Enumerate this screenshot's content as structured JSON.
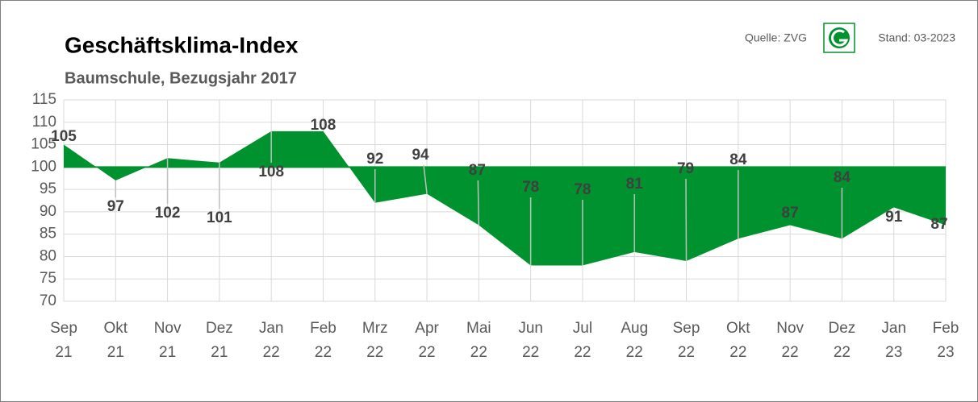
{
  "chart_data": {
    "type": "area",
    "title": "Geschäftsklima-Index",
    "subtitle": "Baumschule, Bezugsjahr 2017",
    "source": "Quelle: ZVG",
    "date": "Stand: 03-2023",
    "categories": [
      [
        "Sep",
        "21"
      ],
      [
        "Okt",
        "21"
      ],
      [
        "Nov",
        "21"
      ],
      [
        "Dez",
        "21"
      ],
      [
        "Jan",
        "22"
      ],
      [
        "Feb",
        "22"
      ],
      [
        "Mrz",
        "22"
      ],
      [
        "Apr",
        "22"
      ],
      [
        "Mai",
        "22"
      ],
      [
        "Jun",
        "22"
      ],
      [
        "Jul",
        "22"
      ],
      [
        "Aug",
        "22"
      ],
      [
        "Sep",
        "22"
      ],
      [
        "Okt",
        "22"
      ],
      [
        "Nov",
        "22"
      ],
      [
        "Dez",
        "22"
      ],
      [
        "Jan",
        "23"
      ],
      [
        "Feb",
        "23"
      ]
    ],
    "values": [
      105,
      97,
      102,
      101,
      108,
      108,
      92,
      94,
      87,
      78,
      78,
      81,
      79,
      84,
      87,
      84,
      91,
      87
    ],
    "baseline": 100,
    "color": "#00922e",
    "ylim": [
      70,
      115
    ],
    "yticks": [
      70,
      75,
      80,
      85,
      90,
      95,
      100,
      105,
      110,
      115
    ],
    "grid": true
  }
}
